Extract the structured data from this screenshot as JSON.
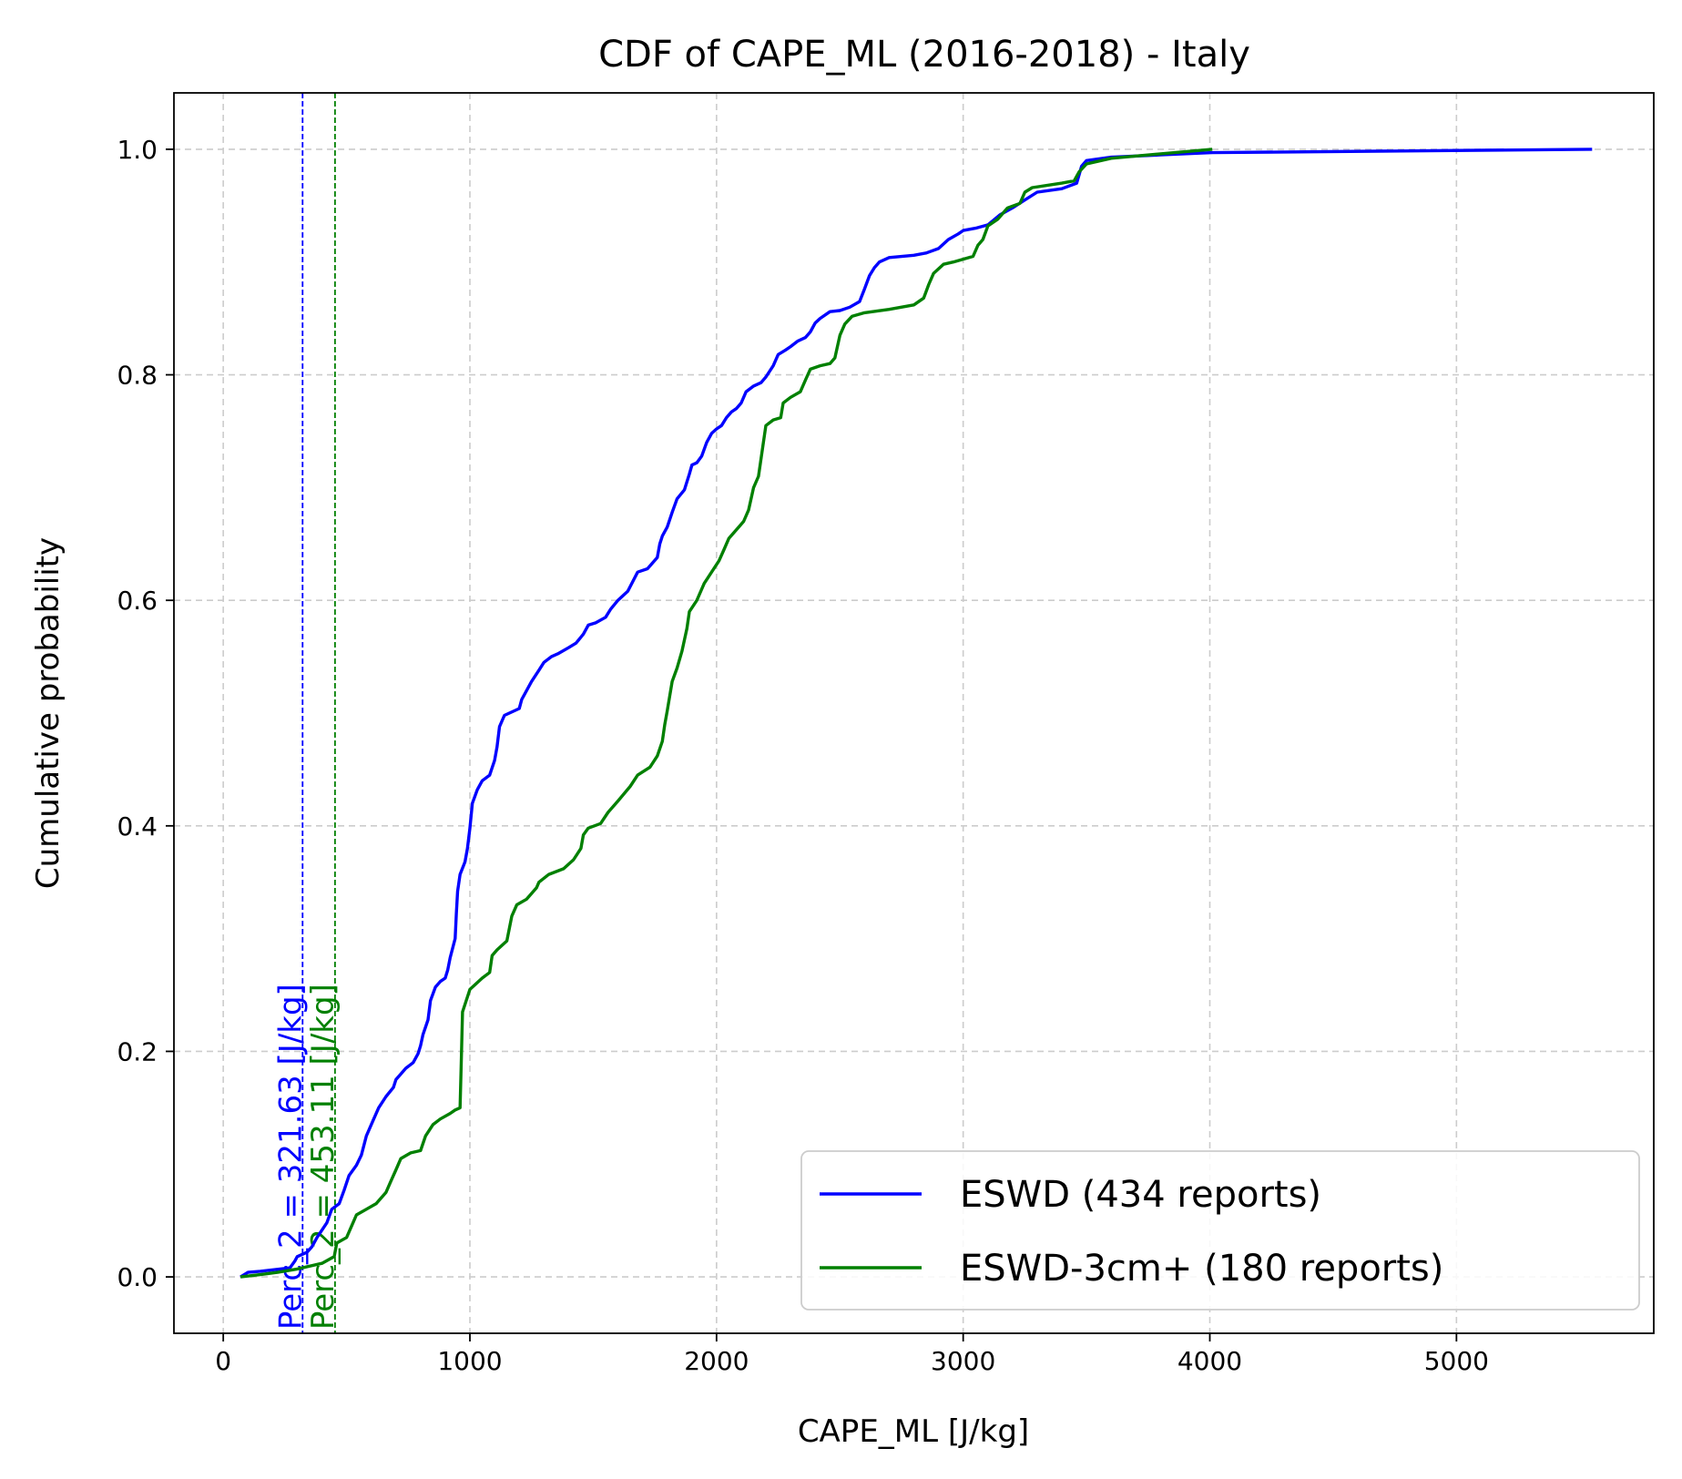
{
  "chart_data": {
    "type": "line",
    "title": "CDF of CAPE_ML (2016-2018) - Italy",
    "xlabel": "CAPE_ML [J/kg]",
    "ylabel": "Cumulative probability",
    "xlim": [
      -200,
      5800
    ],
    "ylim": [
      -0.05,
      1.05
    ],
    "xticks": [
      0,
      1000,
      2000,
      3000,
      4000,
      5000
    ],
    "xtick_labels": [
      "0",
      "1000",
      "2000",
      "3000",
      "4000",
      "5000"
    ],
    "yticks": [
      0.0,
      0.2,
      0.4,
      0.6,
      0.8,
      1.0
    ],
    "ytick_labels": [
      "0.0",
      "0.2",
      "0.4",
      "0.6",
      "0.8",
      "1.0"
    ],
    "grid": true,
    "legend_position": "lower-right",
    "series": [
      {
        "name": "ESWD (434 reports)",
        "color": "#0000ff",
        "points": [
          [
            70,
            0.0
          ],
          [
            100,
            0.004
          ],
          [
            150,
            0.005
          ],
          [
            270,
            0.008
          ],
          [
            290,
            0.014
          ],
          [
            300,
            0.018
          ],
          [
            340,
            0.022
          ],
          [
            360,
            0.027
          ],
          [
            380,
            0.035
          ],
          [
            420,
            0.048
          ],
          [
            440,
            0.06
          ],
          [
            470,
            0.065
          ],
          [
            490,
            0.077
          ],
          [
            510,
            0.09
          ],
          [
            540,
            0.099
          ],
          [
            560,
            0.108
          ],
          [
            580,
            0.125
          ],
          [
            610,
            0.14
          ],
          [
            630,
            0.15
          ],
          [
            660,
            0.16
          ],
          [
            690,
            0.168
          ],
          [
            700,
            0.175
          ],
          [
            720,
            0.18
          ],
          [
            740,
            0.185
          ],
          [
            770,
            0.19
          ],
          [
            790,
            0.198
          ],
          [
            800,
            0.205
          ],
          [
            810,
            0.215
          ],
          [
            830,
            0.228
          ],
          [
            840,
            0.245
          ],
          [
            860,
            0.257
          ],
          [
            880,
            0.262
          ],
          [
            900,
            0.265
          ],
          [
            910,
            0.272
          ],
          [
            920,
            0.283
          ],
          [
            940,
            0.3
          ],
          [
            945,
            0.322
          ],
          [
            950,
            0.342
          ],
          [
            960,
            0.357
          ],
          [
            980,
            0.368
          ],
          [
            990,
            0.38
          ],
          [
            1000,
            0.398
          ],
          [
            1010,
            0.42
          ],
          [
            1030,
            0.432
          ],
          [
            1050,
            0.44
          ],
          [
            1080,
            0.445
          ],
          [
            1100,
            0.458
          ],
          [
            1110,
            0.47
          ],
          [
            1120,
            0.488
          ],
          [
            1140,
            0.498
          ],
          [
            1180,
            0.502
          ],
          [
            1200,
            0.504
          ],
          [
            1210,
            0.512
          ],
          [
            1230,
            0.52
          ],
          [
            1250,
            0.528
          ],
          [
            1280,
            0.538
          ],
          [
            1300,
            0.545
          ],
          [
            1330,
            0.55
          ],
          [
            1360,
            0.553
          ],
          [
            1400,
            0.558
          ],
          [
            1430,
            0.562
          ],
          [
            1460,
            0.57
          ],
          [
            1480,
            0.578
          ],
          [
            1510,
            0.58
          ],
          [
            1550,
            0.585
          ],
          [
            1570,
            0.592
          ],
          [
            1600,
            0.6
          ],
          [
            1640,
            0.608
          ],
          [
            1680,
            0.625
          ],
          [
            1720,
            0.628
          ],
          [
            1760,
            0.638
          ],
          [
            1770,
            0.65
          ],
          [
            1780,
            0.657
          ],
          [
            1800,
            0.665
          ],
          [
            1820,
            0.678
          ],
          [
            1840,
            0.69
          ],
          [
            1870,
            0.698
          ],
          [
            1890,
            0.712
          ],
          [
            1900,
            0.72
          ],
          [
            1920,
            0.722
          ],
          [
            1940,
            0.728
          ],
          [
            1960,
            0.74
          ],
          [
            1980,
            0.748
          ],
          [
            2000,
            0.752
          ],
          [
            2020,
            0.755
          ],
          [
            2040,
            0.762
          ],
          [
            2060,
            0.767
          ],
          [
            2080,
            0.77
          ],
          [
            2100,
            0.775
          ],
          [
            2120,
            0.785
          ],
          [
            2150,
            0.79
          ],
          [
            2180,
            0.793
          ],
          [
            2200,
            0.798
          ],
          [
            2230,
            0.808
          ],
          [
            2250,
            0.818
          ],
          [
            2280,
            0.822
          ],
          [
            2300,
            0.825
          ],
          [
            2330,
            0.83
          ],
          [
            2360,
            0.833
          ],
          [
            2380,
            0.838
          ],
          [
            2400,
            0.846
          ],
          [
            2420,
            0.85
          ],
          [
            2460,
            0.856
          ],
          [
            2500,
            0.857
          ],
          [
            2540,
            0.86
          ],
          [
            2580,
            0.865
          ],
          [
            2600,
            0.876
          ],
          [
            2620,
            0.888
          ],
          [
            2640,
            0.895
          ],
          [
            2660,
            0.9
          ],
          [
            2700,
            0.904
          ],
          [
            2800,
            0.906
          ],
          [
            2850,
            0.908
          ],
          [
            2900,
            0.912
          ],
          [
            2940,
            0.92
          ],
          [
            2980,
            0.925
          ],
          [
            3000,
            0.928
          ],
          [
            3050,
            0.93
          ],
          [
            3100,
            0.933
          ],
          [
            3150,
            0.942
          ],
          [
            3200,
            0.948
          ],
          [
            3250,
            0.955
          ],
          [
            3300,
            0.962
          ],
          [
            3400,
            0.965
          ],
          [
            3460,
            0.97
          ],
          [
            3480,
            0.985
          ],
          [
            3500,
            0.99
          ],
          [
            3600,
            0.993
          ],
          [
            3800,
            0.995
          ],
          [
            4010,
            0.997
          ],
          [
            5550,
            1.0
          ]
        ]
      },
      {
        "name": "ESWD-3cm+ (180 reports)",
        "color": "#008000",
        "points": [
          [
            70,
            0.0
          ],
          [
            150,
            0.002
          ],
          [
            220,
            0.004
          ],
          [
            300,
            0.007
          ],
          [
            400,
            0.012
          ],
          [
            450,
            0.018
          ],
          [
            460,
            0.03
          ],
          [
            500,
            0.035
          ],
          [
            520,
            0.045
          ],
          [
            540,
            0.055
          ],
          [
            580,
            0.06
          ],
          [
            620,
            0.065
          ],
          [
            660,
            0.075
          ],
          [
            680,
            0.085
          ],
          [
            700,
            0.095
          ],
          [
            720,
            0.105
          ],
          [
            760,
            0.11
          ],
          [
            800,
            0.112
          ],
          [
            820,
            0.125
          ],
          [
            850,
            0.135
          ],
          [
            880,
            0.14
          ],
          [
            920,
            0.145
          ],
          [
            940,
            0.148
          ],
          [
            960,
            0.15
          ],
          [
            965,
            0.19
          ],
          [
            970,
            0.235
          ],
          [
            1000,
            0.255
          ],
          [
            1050,
            0.265
          ],
          [
            1080,
            0.27
          ],
          [
            1090,
            0.285
          ],
          [
            1110,
            0.29
          ],
          [
            1150,
            0.298
          ],
          [
            1170,
            0.32
          ],
          [
            1190,
            0.33
          ],
          [
            1230,
            0.335
          ],
          [
            1270,
            0.345
          ],
          [
            1280,
            0.35
          ],
          [
            1320,
            0.357
          ],
          [
            1380,
            0.362
          ],
          [
            1420,
            0.37
          ],
          [
            1450,
            0.38
          ],
          [
            1460,
            0.392
          ],
          [
            1480,
            0.398
          ],
          [
            1530,
            0.402
          ],
          [
            1560,
            0.412
          ],
          [
            1600,
            0.422
          ],
          [
            1650,
            0.435
          ],
          [
            1680,
            0.445
          ],
          [
            1730,
            0.452
          ],
          [
            1760,
            0.462
          ],
          [
            1780,
            0.475
          ],
          [
            1790,
            0.49
          ],
          [
            1800,
            0.502
          ],
          [
            1810,
            0.515
          ],
          [
            1820,
            0.528
          ],
          [
            1840,
            0.54
          ],
          [
            1860,
            0.555
          ],
          [
            1880,
            0.575
          ],
          [
            1890,
            0.59
          ],
          [
            1920,
            0.6
          ],
          [
            1950,
            0.615
          ],
          [
            1980,
            0.625
          ],
          [
            2010,
            0.635
          ],
          [
            2030,
            0.645
          ],
          [
            2050,
            0.655
          ],
          [
            2090,
            0.665
          ],
          [
            2110,
            0.67
          ],
          [
            2130,
            0.68
          ],
          [
            2150,
            0.7
          ],
          [
            2170,
            0.71
          ],
          [
            2180,
            0.725
          ],
          [
            2190,
            0.74
          ],
          [
            2200,
            0.755
          ],
          [
            2230,
            0.76
          ],
          [
            2260,
            0.762
          ],
          [
            2270,
            0.775
          ],
          [
            2300,
            0.78
          ],
          [
            2340,
            0.785
          ],
          [
            2360,
            0.795
          ],
          [
            2380,
            0.805
          ],
          [
            2420,
            0.808
          ],
          [
            2460,
            0.81
          ],
          [
            2480,
            0.815
          ],
          [
            2500,
            0.835
          ],
          [
            2520,
            0.845
          ],
          [
            2550,
            0.852
          ],
          [
            2600,
            0.855
          ],
          [
            2700,
            0.858
          ],
          [
            2800,
            0.862
          ],
          [
            2840,
            0.868
          ],
          [
            2860,
            0.88
          ],
          [
            2880,
            0.89
          ],
          [
            2920,
            0.898
          ],
          [
            2960,
            0.9
          ],
          [
            3040,
            0.905
          ],
          [
            3060,
            0.915
          ],
          [
            3080,
            0.92
          ],
          [
            3100,
            0.932
          ],
          [
            3140,
            0.938
          ],
          [
            3180,
            0.948
          ],
          [
            3230,
            0.952
          ],
          [
            3250,
            0.962
          ],
          [
            3280,
            0.966
          ],
          [
            3400,
            0.97
          ],
          [
            3450,
            0.972
          ],
          [
            3470,
            0.98
          ],
          [
            3500,
            0.987
          ],
          [
            3600,
            0.992
          ],
          [
            3800,
            0.996
          ],
          [
            4010,
            1.0
          ]
        ]
      }
    ],
    "vlines": [
      {
        "x": 321.63,
        "color": "#0000ff",
        "label": "Perc_2 = 321.63 [J/kg]"
      },
      {
        "x": 453.11,
        "color": "#008000",
        "label": "Perc_2 = 453.11 [J/kg]"
      }
    ]
  }
}
